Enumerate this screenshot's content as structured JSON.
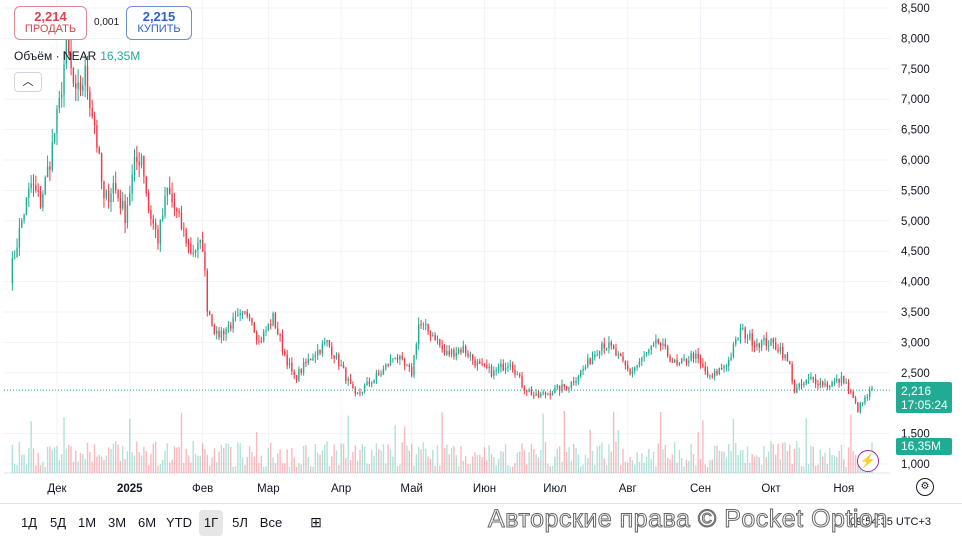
{
  "sell": {
    "price": "2,214",
    "label": "ПРОДАТЬ"
  },
  "buy": {
    "price": "2,215",
    "label": "КУПИТЬ"
  },
  "spread": "0,001",
  "volume_legend": {
    "label": "Объём · NEAR",
    "value": "16,35M"
  },
  "collapse_icon": "chevron-up-icon",
  "last_price": {
    "value": "2,216",
    "countdown": "17:05:24"
  },
  "last_volume": "16,35M",
  "timeframes": [
    "1Д",
    "5Д",
    "1М",
    "3М",
    "6М",
    "YTD",
    "1Г",
    "5Л",
    "Все"
  ],
  "active_timeframe": "1Г",
  "clock": "09:54:35 UTC+3",
  "watermark": "Авторские права © Pocket Option",
  "colors": {
    "up": "#22ab94",
    "down": "#f23645",
    "accent": "#2962ff",
    "tag": "#22ab94"
  },
  "chart_data": {
    "type": "candlestick",
    "ylim": [
      1.0,
      8.5
    ],
    "y_ticks": [
      "8,500",
      "8,000",
      "7,500",
      "7,000",
      "6,500",
      "6,000",
      "5,500",
      "5,000",
      "4,500",
      "4,000",
      "3,500",
      "3,000",
      "2,500",
      "1,500",
      "1,000"
    ],
    "y_tick_values": [
      8.5,
      8.0,
      7.5,
      7.0,
      6.5,
      6.0,
      5.5,
      5.0,
      4.5,
      4.0,
      3.5,
      3.0,
      2.5,
      1.5,
      1.0
    ],
    "x_ticks": [
      "Дек",
      "2025",
      "Фев",
      "Мар",
      "Апр",
      "Май",
      "Июн",
      "Июл",
      "Авг",
      "Сен",
      "Окт",
      "Ноя"
    ],
    "x_tick_dates": [
      "2024-12-01",
      "2025-01-01",
      "2025-02-01",
      "2025-03-01",
      "2025-04-01",
      "2025-05-01",
      "2025-06-01",
      "2025-07-01",
      "2025-08-01",
      "2025-09-01",
      "2025-10-01",
      "2025-11-01"
    ],
    "bold_ticks": [
      "2025"
    ],
    "date_range": [
      "2024-11-11",
      "2025-11-13"
    ],
    "anchors": [
      [
        "2024-11-11",
        4.1
      ],
      [
        "2024-11-16",
        5.0
      ],
      [
        "2024-11-20",
        5.6
      ],
      [
        "2024-11-24",
        5.3
      ],
      [
        "2024-11-28",
        6.0
      ],
      [
        "2024-12-02",
        6.9
      ],
      [
        "2024-12-05",
        7.9
      ],
      [
        "2024-12-09",
        7.0
      ],
      [
        "2024-12-13",
        7.4
      ],
      [
        "2024-12-17",
        6.6
      ],
      [
        "2024-12-21",
        5.3
      ],
      [
        "2024-12-25",
        5.6
      ],
      [
        "2024-12-30",
        5.1
      ],
      [
        "2025-01-03",
        5.9
      ],
      [
        "2025-01-06",
        6.1
      ],
      [
        "2025-01-09",
        5.2
      ],
      [
        "2025-01-13",
        4.7
      ],
      [
        "2025-01-17",
        5.5
      ],
      [
        "2025-01-21",
        5.1
      ],
      [
        "2025-01-27",
        4.5
      ],
      [
        "2025-02-01",
        4.6
      ],
      [
        "2025-02-03",
        3.6
      ],
      [
        "2025-02-07",
        3.1
      ],
      [
        "2025-02-13",
        3.3
      ],
      [
        "2025-02-21",
        3.5
      ],
      [
        "2025-02-25",
        3.0
      ],
      [
        "2025-03-03",
        3.4
      ],
      [
        "2025-03-08",
        2.8
      ],
      [
        "2025-03-12",
        2.4
      ],
      [
        "2025-03-20",
        2.8
      ],
      [
        "2025-03-26",
        3.0
      ],
      [
        "2025-04-01",
        2.6
      ],
      [
        "2025-04-07",
        2.1
      ],
      [
        "2025-04-12",
        2.3
      ],
      [
        "2025-04-18",
        2.5
      ],
      [
        "2025-04-24",
        2.8
      ],
      [
        "2025-04-28",
        2.6
      ],
      [
        "2025-05-01",
        2.5
      ],
      [
        "2025-05-04",
        3.3
      ],
      [
        "2025-05-11",
        3.1
      ],
      [
        "2025-05-15",
        2.8
      ],
      [
        "2025-05-23",
        2.9
      ],
      [
        "2025-05-30",
        2.6
      ],
      [
        "2025-06-05",
        2.5
      ],
      [
        "2025-06-12",
        2.7
      ],
      [
        "2025-06-17",
        2.3
      ],
      [
        "2025-06-23",
        2.1
      ],
      [
        "2025-06-30",
        2.2
      ],
      [
        "2025-07-07",
        2.3
      ],
      [
        "2025-07-14",
        2.6
      ],
      [
        "2025-07-21",
        3.0
      ],
      [
        "2025-07-25",
        2.9
      ],
      [
        "2025-08-02",
        2.5
      ],
      [
        "2025-08-09",
        2.8
      ],
      [
        "2025-08-14",
        3.0
      ],
      [
        "2025-08-22",
        2.6
      ],
      [
        "2025-08-29",
        2.8
      ],
      [
        "2025-09-05",
        2.4
      ],
      [
        "2025-09-13",
        2.7
      ],
      [
        "2025-09-18",
        3.2
      ],
      [
        "2025-09-24",
        3.0
      ],
      [
        "2025-09-30",
        3.0
      ],
      [
        "2025-10-05",
        2.9
      ],
      [
        "2025-10-09",
        2.6
      ],
      [
        "2025-10-11",
        2.2
      ],
      [
        "2025-10-18",
        2.4
      ],
      [
        "2025-10-25",
        2.3
      ],
      [
        "2025-11-01",
        2.4
      ],
      [
        "2025-11-07",
        1.9
      ],
      [
        "2025-11-13",
        2.216
      ]
    ]
  }
}
